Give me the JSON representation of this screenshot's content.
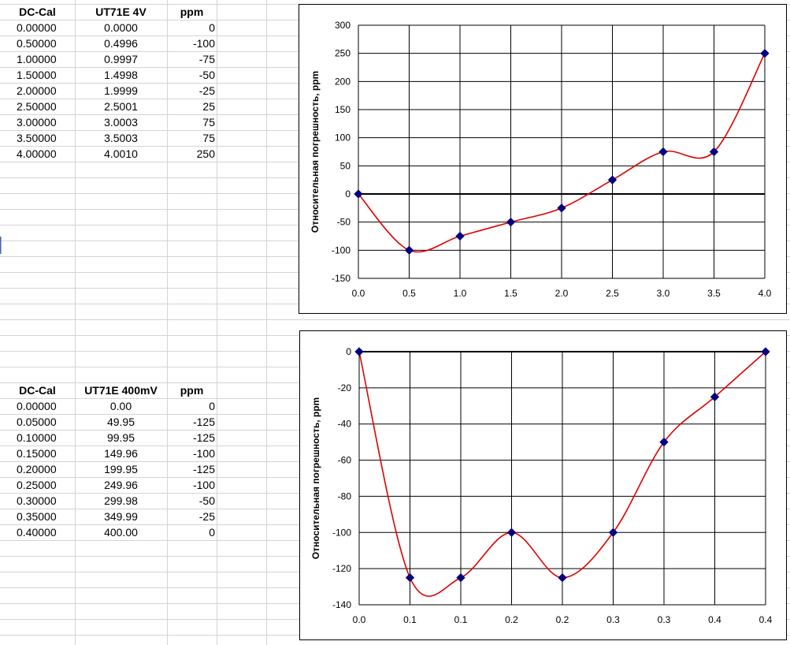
{
  "table1": {
    "headers": [
      "DC-Cal",
      "UT71E 4V",
      "ppm"
    ],
    "rows": [
      [
        "0.00000",
        "0.0000",
        "0"
      ],
      [
        "0.50000",
        "0.4996",
        "-100"
      ],
      [
        "1.00000",
        "0.9997",
        "-75"
      ],
      [
        "1.50000",
        "1.4998",
        "-50"
      ],
      [
        "2.00000",
        "1.9999",
        "-25"
      ],
      [
        "2.50000",
        "2.5001",
        "25"
      ],
      [
        "3.00000",
        "3.0003",
        "75"
      ],
      [
        "3.50000",
        "3.5003",
        "75"
      ],
      [
        "4.00000",
        "4.0010",
        "250"
      ]
    ]
  },
  "table2": {
    "headers": [
      "DC-Cal",
      "UT71E 400mV",
      "ppm"
    ],
    "rows": [
      [
        "0.00000",
        "0.00",
        "0"
      ],
      [
        "0.05000",
        "49.95",
        "-125"
      ],
      [
        "0.10000",
        "99.95",
        "-125"
      ],
      [
        "0.15000",
        "149.96",
        "-100"
      ],
      [
        "0.20000",
        "199.95",
        "-125"
      ],
      [
        "0.25000",
        "249.96",
        "-100"
      ],
      [
        "0.30000",
        "299.98",
        "-50"
      ],
      [
        "0.35000",
        "349.99",
        "-25"
      ],
      [
        "0.40000",
        "400.00",
        "0"
      ]
    ]
  },
  "chart_data": [
    {
      "type": "scatter",
      "title": "",
      "xlabel": "",
      "ylabel": "Относительная погрешность, ppm",
      "x": [
        0,
        0.5,
        1,
        1.5,
        2,
        2.5,
        3,
        3.5,
        4
      ],
      "y": [
        0,
        -100,
        -75,
        -50,
        -25,
        25,
        75,
        75,
        250
      ],
      "xlim": [
        0,
        4
      ],
      "ylim": [
        -150,
        300
      ],
      "x_tick_labels": [
        "0.0",
        "0.5",
        "1.0",
        "1.5",
        "2.0",
        "2.5",
        "3.0",
        "3.5",
        "4.0"
      ],
      "y_ticks": [
        -150,
        -100,
        -50,
        0,
        50,
        100,
        150,
        200,
        250,
        300
      ],
      "grid": true,
      "line_color": "#e00000",
      "marker_color": "#000080",
      "smoothed": true
    },
    {
      "type": "scatter",
      "title": "",
      "xlabel": "",
      "ylabel": "Относительная погрешность, ppm",
      "x": [
        0,
        0.05,
        0.1,
        0.15,
        0.2,
        0.25,
        0.3,
        0.35,
        0.4
      ],
      "y": [
        0,
        -125,
        -125,
        -100,
        -125,
        -100,
        -50,
        -25,
        0
      ],
      "xlim": [
        0,
        0.4
      ],
      "ylim": [
        -140,
        0
      ],
      "x_tick_labels": [
        "0.0",
        "0.1",
        "0.1",
        "0.2",
        "0.2",
        "0.3",
        "0.3",
        "0.4",
        "0.4"
      ],
      "y_ticks": [
        -140,
        -120,
        -100,
        -80,
        -60,
        -40,
        -20,
        0
      ],
      "grid": true,
      "line_color": "#e00000",
      "marker_color": "#000080",
      "smoothed": true
    }
  ]
}
